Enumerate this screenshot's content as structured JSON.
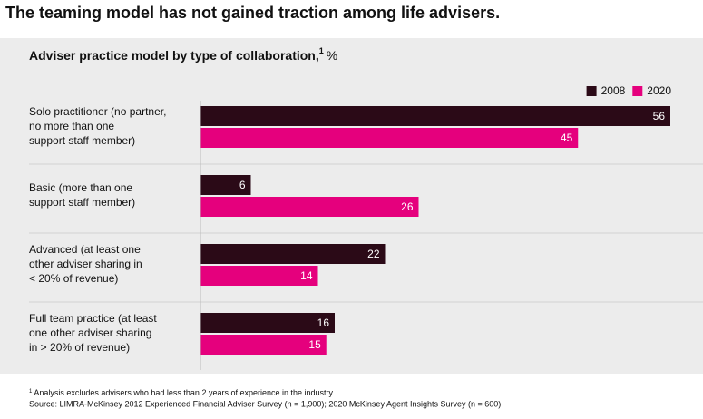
{
  "chart_data": {
    "type": "bar",
    "orientation": "horizontal",
    "title": "The teaming model has not gained traction among life advisers.",
    "subtitle": "Adviser practice model by type of collaboration,",
    "subtitle_marker": "1",
    "unit": "%",
    "categories": [
      [
        "Solo practitioner (no partner,",
        "no more than one",
        "support staff member)"
      ],
      [
        "Basic (more than one",
        "support staff member)"
      ],
      [
        "Advanced (at least one",
        "other adviser sharing in",
        "< 20% of revenue)"
      ],
      [
        "Full team practice (at least",
        "one other adviser sharing",
        "in > 20% of revenue)"
      ]
    ],
    "series": [
      {
        "name": "2008",
        "color": "#2b0a17",
        "values": [
          56,
          6,
          22,
          16
        ]
      },
      {
        "name": "2020",
        "color": "#e5007d",
        "values": [
          45,
          26,
          14,
          15
        ]
      }
    ],
    "legend": "top-right",
    "footnote_marker": "1",
    "footnote": "Analysis excludes advisers who had less than 2 years of experience in the industry.",
    "source": "Source: LIMRA-McKinsey 2012 Experienced Financial Adviser Survey (n = 1,900); 2020 McKinsey Agent Insights Survey (n = 600)"
  }
}
